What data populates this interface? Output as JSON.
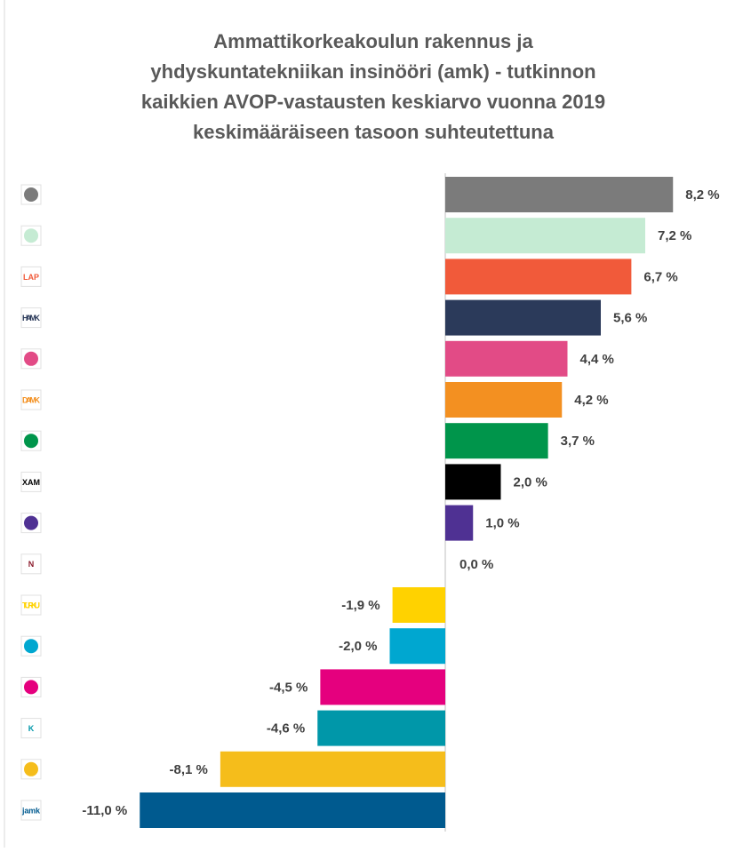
{
  "chart_data": {
    "type": "hbar",
    "title": [
      "Ammattikorkeakoulun rakennus ja",
      "yhdyskuntatekniikan insinööri (amk) - tutkinnon",
      "kaikkien AVOP-vastausten keskiarvo vuonna 2019",
      "keskimääräiseen tasoon suhteutettuna"
    ],
    "categories": [
      null,
      null,
      "LAP",
      "HAMK",
      null,
      "DAMK",
      null,
      "XAM",
      null,
      "N",
      "TURKU",
      null,
      null,
      "K",
      null,
      "jamk"
    ],
    "values": [
      8.2,
      7.2,
      6.7,
      5.6,
      4.4,
      4.2,
      3.7,
      2.0,
      1.0,
      0.0,
      -1.9,
      -2.0,
      -4.5,
      -4.6,
      -8.1,
      -11.0
    ],
    "value_labels": [
      "8,2 %",
      "7,2 %",
      "6,7 %",
      "5,6 %",
      "4,4 %",
      "4,2 %",
      "3,7 %",
      "2,0 %",
      "1,0 %",
      "0,0 %",
      "-1,9 %",
      "-2,0 %",
      "-4,5 %",
      "-4,6 %",
      "-8,1 %",
      "-11,0 %"
    ],
    "colors": [
      "#7b7b7b",
      "#c5ebd3",
      "#f15a3a",
      "#2b3a5a",
      "#e24b86",
      "#f39021",
      "#00954b",
      "#000000",
      "#4f3193",
      "#8b1a2b",
      "#ffd200",
      "#00a7d0",
      "#e5007e",
      "#0097a9",
      "#f5bd1b",
      "#005a8f"
    ]
  }
}
